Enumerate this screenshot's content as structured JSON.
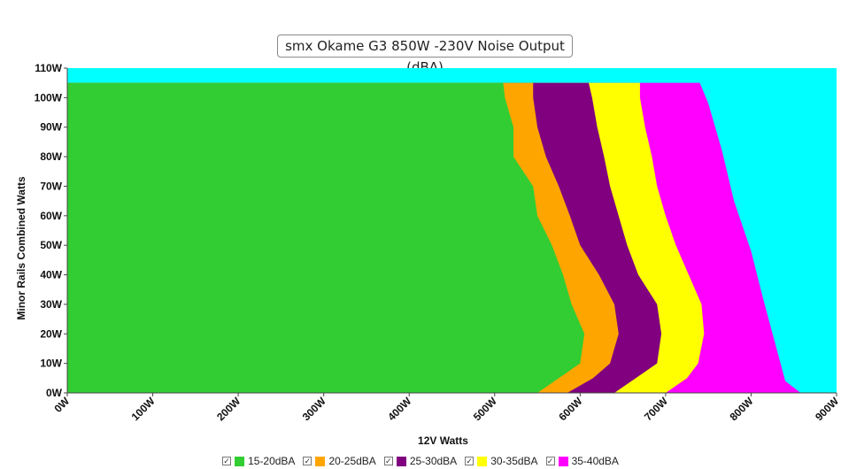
{
  "chart_data": {
    "type": "area",
    "title": "smx Okame G3 850W -230V Noise Output (dBA)",
    "xlabel": "12V Watts",
    "ylabel": "Minor Rails Combined Watts",
    "xlim": [
      0,
      900
    ],
    "ylim": [
      0,
      110
    ],
    "x_ticks": [
      "0W",
      "100W",
      "200W",
      "300W",
      "400W",
      "500W",
      "600W",
      "700W",
      "800W",
      "900W"
    ],
    "y_ticks": [
      "0W",
      "10W",
      "20W",
      "30W",
      "40W",
      "50W",
      "60W",
      "70W",
      "80W",
      "90W",
      "100W",
      "110W"
    ],
    "data_max_y": 105,
    "background_color": "#00FFFF",
    "grid": false,
    "legend_position": "bottom",
    "series": [
      {
        "name": "15-20dBA",
        "color": "#32CD32",
        "boundary": [
          [
            0,
            550
          ],
          [
            5,
            575
          ],
          [
            10,
            600
          ],
          [
            20,
            605
          ],
          [
            30,
            590
          ],
          [
            40,
            580
          ],
          [
            50,
            567
          ],
          [
            60,
            550
          ],
          [
            70,
            545
          ],
          [
            80,
            522
          ],
          [
            90,
            522
          ],
          [
            100,
            512
          ],
          [
            105,
            510
          ]
        ]
      },
      {
        "name": "20-25dBA",
        "color": "#FFA500",
        "boundary": [
          [
            0,
            585
          ],
          [
            5,
            615
          ],
          [
            10,
            635
          ],
          [
            20,
            645
          ],
          [
            30,
            640
          ],
          [
            40,
            622
          ],
          [
            50,
            600
          ],
          [
            60,
            588
          ],
          [
            70,
            575
          ],
          [
            80,
            560
          ],
          [
            90,
            550
          ],
          [
            100,
            545
          ],
          [
            105,
            545
          ]
        ]
      },
      {
        "name": "25-30dBA",
        "color": "#800080",
        "boundary": [
          [
            0,
            640
          ],
          [
            5,
            665
          ],
          [
            10,
            690
          ],
          [
            20,
            695
          ],
          [
            30,
            690
          ],
          [
            40,
            668
          ],
          [
            50,
            655
          ],
          [
            60,
            645
          ],
          [
            70,
            635
          ],
          [
            80,
            628
          ],
          [
            90,
            620
          ],
          [
            100,
            614
          ],
          [
            105,
            610
          ]
        ]
      },
      {
        "name": "30-35dBA",
        "color": "#FFFF00",
        "boundary": [
          [
            0,
            700
          ],
          [
            5,
            725
          ],
          [
            10,
            738
          ],
          [
            20,
            745
          ],
          [
            30,
            742
          ],
          [
            40,
            727
          ],
          [
            50,
            712
          ],
          [
            60,
            700
          ],
          [
            70,
            690
          ],
          [
            80,
            684
          ],
          [
            90,
            676
          ],
          [
            100,
            670
          ],
          [
            105,
            670
          ]
        ]
      },
      {
        "name": "35-40dBA",
        "color": "#FF00FF",
        "boundary": [
          [
            0,
            858
          ],
          [
            4,
            840
          ],
          [
            18,
            827
          ],
          [
            32,
            814
          ],
          [
            48,
            800
          ],
          [
            65,
            780
          ],
          [
            82,
            766
          ],
          [
            98,
            750
          ],
          [
            105,
            740
          ]
        ]
      }
    ]
  }
}
